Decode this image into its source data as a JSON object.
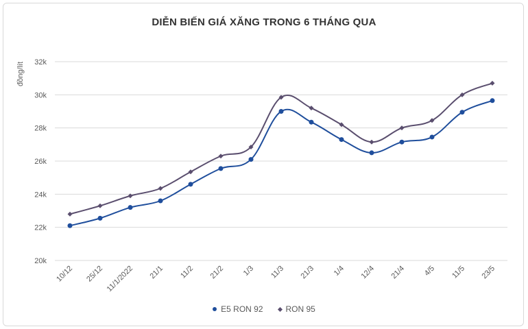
{
  "chart_data": {
    "type": "line",
    "title": "DIỄN BIẾN GIÁ XĂNG TRONG 6 THÁNG QUA",
    "ylabel": "đồng/lít",
    "xlabel": "",
    "categories": [
      "10/12",
      "25/12",
      "11/1/2022",
      "21/1",
      "11/2",
      "21/2",
      "1/3",
      "11/3",
      "21/3",
      "1/4",
      "12/4",
      "21/4",
      "4/5",
      "11/5",
      "23/5"
    ],
    "ylim": [
      20000,
      32000
    ],
    "yticks": [
      20000,
      22000,
      24000,
      26000,
      28000,
      30000,
      32000
    ],
    "ytick_labels": [
      "20k",
      "22k",
      "24k",
      "26k",
      "28k",
      "30k",
      "32k"
    ],
    "grid": true,
    "legend_position": "bottom",
    "series": [
      {
        "name": "E5 RON 92",
        "color": "#1f4e9c",
        "marker": "circle",
        "values": [
          22100,
          22550,
          23200,
          23600,
          24600,
          25550,
          26100,
          29000,
          28350,
          27300,
          26500,
          27150,
          27450,
          28950,
          29650
        ]
      },
      {
        "name": "RON 95",
        "color": "#5a4e6e",
        "marker": "diamond",
        "values": [
          22800,
          23300,
          23900,
          24350,
          25350,
          26300,
          26850,
          29850,
          29200,
          28200,
          27150,
          28000,
          28450,
          30000,
          30700
        ]
      }
    ]
  }
}
